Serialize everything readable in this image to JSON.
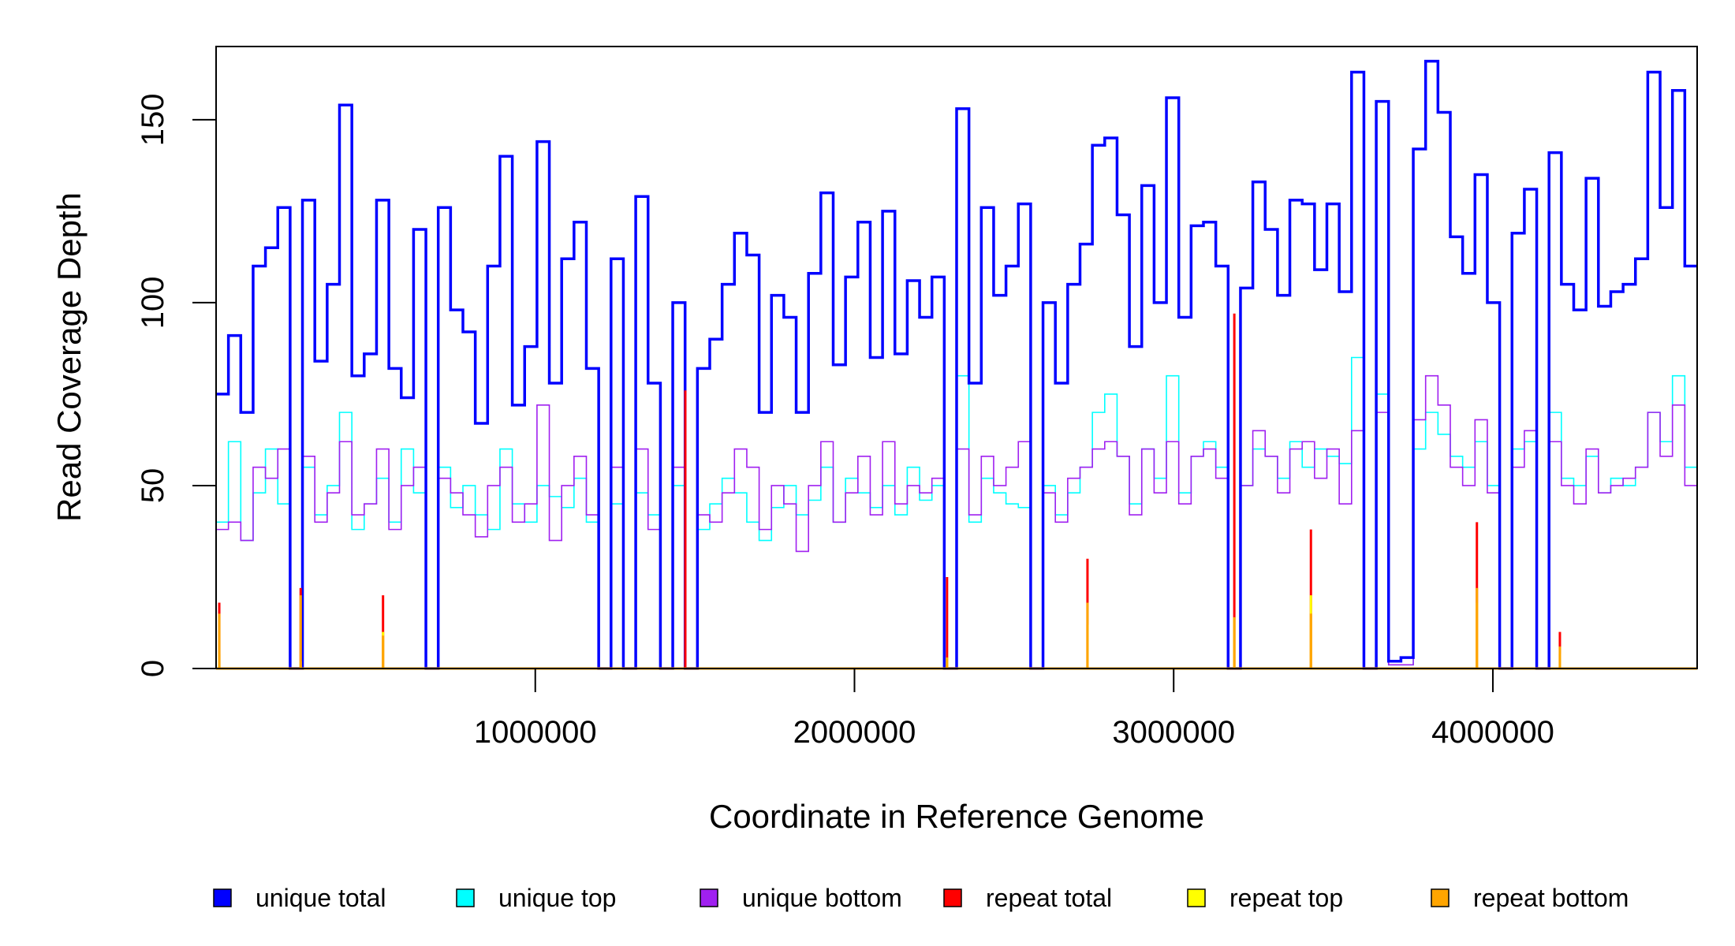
{
  "chart_data": {
    "type": "line",
    "title": "",
    "xlabel": "Coordinate in Reference Genome",
    "ylabel": "Read Coverage Depth",
    "xlim": [
      0,
      4640000
    ],
    "ylim": [
      0,
      170
    ],
    "x_ticks": [
      1000000,
      2000000,
      3000000,
      4000000
    ],
    "x_tick_labels": [
      "1000000",
      "2000000",
      "3000000",
      "4000000"
    ],
    "y_ticks": [
      0,
      50,
      100,
      150
    ],
    "y_tick_labels": [
      "0",
      "50",
      "100",
      "150"
    ],
    "grid": false,
    "legend_position": "bottom",
    "series": [
      {
        "name": "unique total",
        "color": "#0000FF",
        "values": [
          75,
          91,
          70,
          110,
          115,
          126,
          0,
          128,
          84,
          105,
          154,
          80,
          86,
          128,
          82,
          74,
          120,
          0,
          126,
          98,
          92,
          67,
          110,
          140,
          72,
          88,
          144,
          78,
          112,
          122,
          82,
          0,
          112,
          0,
          129,
          78,
          0,
          100,
          0,
          82,
          90,
          105,
          119,
          113,
          70,
          102,
          96,
          70,
          108,
          130,
          83,
          107,
          122,
          85,
          125,
          86,
          106,
          96,
          107,
          0,
          153,
          78,
          126,
          102,
          110,
          127,
          0,
          100,
          78,
          105,
          116,
          143,
          145,
          124,
          88,
          132,
          100,
          156,
          96,
          121,
          122,
          110,
          0,
          104,
          133,
          120,
          102,
          128,
          127,
          109,
          127,
          103,
          163,
          0,
          155,
          2,
          3,
          142,
          166,
          152,
          118,
          108,
          135,
          100,
          0,
          119,
          131,
          0,
          141,
          105,
          98,
          134,
          99,
          103,
          105,
          112,
          163,
          126,
          158,
          110
        ]
      },
      {
        "name": "unique top",
        "color": "#00FFFF",
        "values": [
          40,
          62,
          35,
          48,
          60,
          45,
          0,
          55,
          42,
          50,
          70,
          38,
          45,
          52,
          40,
          60,
          48,
          0,
          55,
          44,
          50,
          42,
          38,
          60,
          45,
          40,
          50,
          47,
          44,
          52,
          40,
          0,
          45,
          0,
          48,
          42,
          0,
          50,
          0,
          38,
          45,
          52,
          48,
          40,
          35,
          44,
          50,
          42,
          46,
          55,
          40,
          52,
          48,
          44,
          50,
          42,
          55,
          46,
          50,
          0,
          80,
          40,
          52,
          48,
          45,
          44,
          0,
          50,
          42,
          48,
          55,
          70,
          75,
          58,
          45,
          60,
          52,
          80,
          48,
          58,
          62,
          55,
          0,
          50,
          60,
          58,
          52,
          62,
          55,
          60,
          58,
          56,
          85,
          0,
          75,
          1,
          1,
          60,
          70,
          64,
          58,
          55,
          62,
          50,
          0,
          60,
          62,
          0,
          70,
          52,
          50,
          58,
          48,
          52,
          50,
          55,
          70,
          62,
          80,
          55
        ]
      },
      {
        "name": "unique bottom",
        "color": "#A020F0",
        "values": [
          38,
          40,
          35,
          55,
          52,
          60,
          0,
          58,
          40,
          48,
          62,
          42,
          45,
          60,
          38,
          50,
          55,
          0,
          52,
          48,
          42,
          36,
          50,
          55,
          40,
          45,
          72,
          35,
          50,
          58,
          42,
          0,
          55,
          0,
          60,
          38,
          0,
          55,
          0,
          42,
          40,
          48,
          60,
          55,
          38,
          50,
          45,
          32,
          50,
          62,
          40,
          48,
          58,
          42,
          62,
          45,
          50,
          48,
          52,
          0,
          60,
          42,
          58,
          50,
          55,
          62,
          0,
          48,
          40,
          52,
          55,
          60,
          62,
          58,
          42,
          60,
          48,
          62,
          45,
          58,
          60,
          52,
          0,
          50,
          65,
          58,
          48,
          60,
          62,
          52,
          60,
          45,
          65,
          0,
          70,
          1,
          1,
          68,
          80,
          72,
          55,
          50,
          68,
          48,
          0,
          55,
          65,
          0,
          62,
          50,
          45,
          60,
          48,
          50,
          52,
          55,
          70,
          58,
          72,
          50
        ]
      },
      {
        "name": "repeat total",
        "color": "#FF0000",
        "spikes": [
          [
            10000,
            18
          ],
          [
            265000,
            22
          ],
          [
            523000,
            20
          ],
          [
            1470000,
            76
          ],
          [
            2290000,
            25
          ],
          [
            2730000,
            30
          ],
          [
            3190000,
            97
          ],
          [
            3430000,
            38
          ],
          [
            3950000,
            40
          ],
          [
            4210000,
            10
          ]
        ]
      },
      {
        "name": "repeat top",
        "color": "#FFFF00",
        "spikes": [
          [
            10000,
            4
          ],
          [
            265000,
            2
          ],
          [
            523000,
            10
          ],
          [
            2290000,
            3
          ],
          [
            2730000,
            12
          ],
          [
            3190000,
            14
          ],
          [
            3430000,
            20
          ],
          [
            3950000,
            18
          ],
          [
            4210000,
            4
          ]
        ]
      },
      {
        "name": "repeat bottom",
        "color": "#FFA500",
        "spikes": [
          [
            10000,
            15
          ],
          [
            265000,
            20
          ],
          [
            523000,
            9
          ],
          [
            2290000,
            3
          ],
          [
            2730000,
            18
          ],
          [
            3190000,
            14
          ],
          [
            3430000,
            15
          ],
          [
            3950000,
            22
          ],
          [
            4210000,
            6
          ]
        ]
      }
    ]
  },
  "legend": [
    {
      "label": "unique total",
      "color": "#0000FF"
    },
    {
      "label": "unique top",
      "color": "#00FFFF"
    },
    {
      "label": "unique bottom",
      "color": "#A020F0"
    },
    {
      "label": "repeat total",
      "color": "#FF0000"
    },
    {
      "label": "repeat top",
      "color": "#FFFF00"
    },
    {
      "label": "repeat bottom",
      "color": "#FFA500"
    }
  ]
}
